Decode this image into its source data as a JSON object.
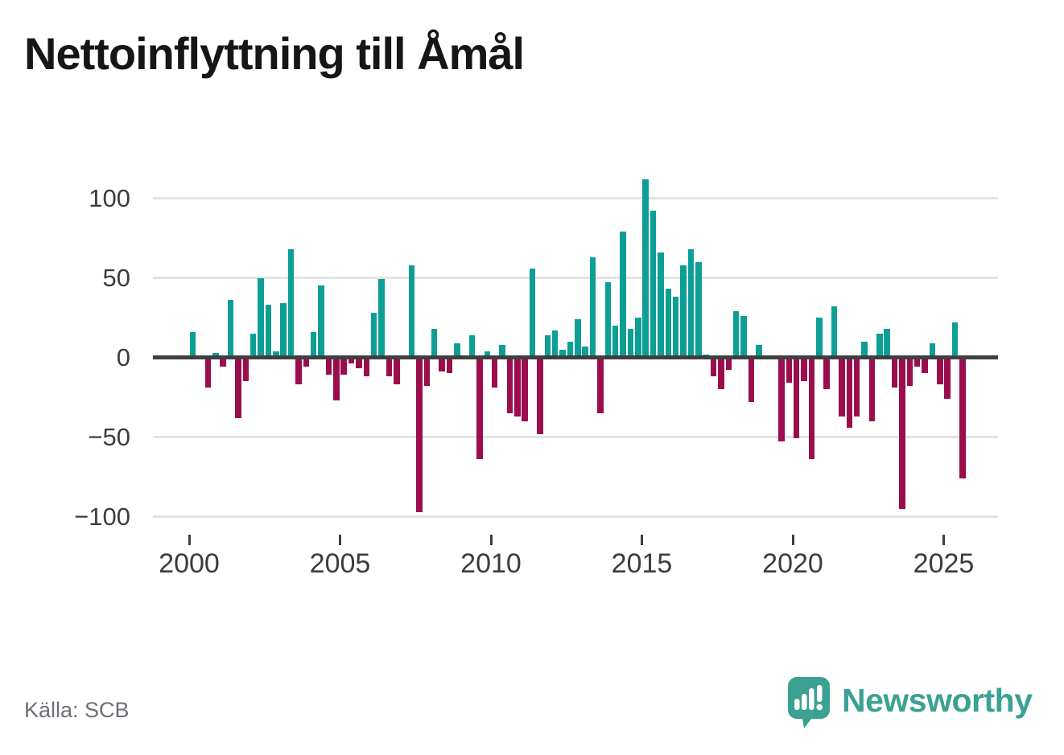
{
  "title": "Nettoinflyttning till Åmål",
  "source": "Källa: SCB",
  "branding": {
    "name": "Newsworthy",
    "color": "#3ba193"
  },
  "colors": {
    "positive": "#0d9e96",
    "negative": "#9b0d4c",
    "grid": "#e3e3e3",
    "zero_axis": "#3f3f3f",
    "tick_text": "#3c3c3c",
    "title_text": "#161616",
    "source_text": "#6f6f78"
  },
  "chart_data": {
    "type": "bar",
    "title": "Nettoinflyttning till Åmål",
    "frequency": "quarterly",
    "start": {
      "year": 2000,
      "quarter": 1
    },
    "end": {
      "year": 2025,
      "quarter": 3
    },
    "values": [
      16,
      0,
      -19,
      3,
      -6,
      36,
      -38,
      -15,
      15,
      50,
      33,
      4,
      34,
      68,
      -17,
      -6,
      16,
      45,
      -11,
      -27,
      -11,
      -4,
      -7,
      -12,
      28,
      49,
      -12,
      -17,
      0,
      58,
      -97,
      -18,
      18,
      -9,
      -10,
      9,
      0,
      14,
      -64,
      4,
      -19,
      8,
      -35,
      -37,
      -40,
      56,
      -48,
      14,
      17,
      5,
      10,
      24,
      7,
      63,
      -35,
      47,
      20,
      79,
      18,
      25,
      112,
      92,
      66,
      43,
      38,
      58,
      68,
      60,
      2,
      -12,
      -20,
      -8,
      29,
      26,
      -28,
      8,
      0,
      0,
      -53,
      -16,
      -51,
      -15,
      -64,
      25,
      -20,
      32,
      -37,
      -44,
      -37,
      10,
      -40,
      15,
      18,
      -19,
      -95,
      -18,
      -6,
      -10,
      9,
      -17,
      -26,
      22,
      -76
    ],
    "x_ticks": [
      2000,
      2005,
      2010,
      2015,
      2020,
      2025
    ],
    "x_tick_labels": [
      "2000",
      "2005",
      "2010",
      "2015",
      "2020",
      "2025"
    ],
    "y_ticks": [
      100,
      50,
      0,
      -50,
      -100
    ],
    "y_tick_labels": [
      "100",
      "50",
      "0",
      "−50",
      "−100"
    ],
    "ylim": [
      -115,
      120
    ],
    "grid": "horizontal",
    "legend": "none",
    "positive_color": "#0d9e96",
    "negative_color": "#9b0d4c"
  }
}
